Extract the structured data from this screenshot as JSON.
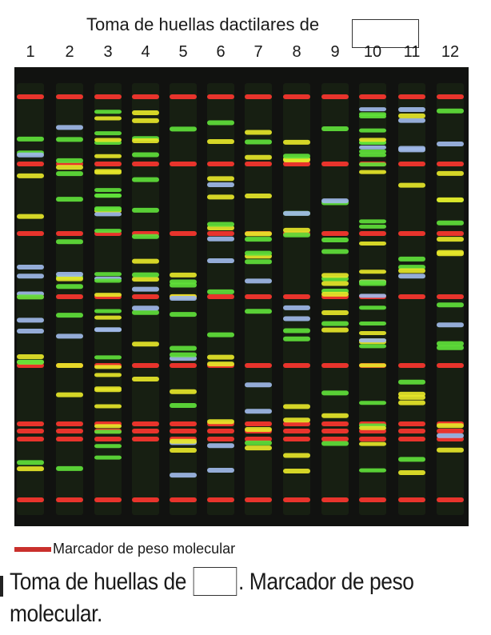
{
  "header": {
    "title": "Toma de huellas dactilares de"
  },
  "lanes": [
    "1",
    "2",
    "3",
    "4",
    "5",
    "6",
    "7",
    "8",
    "9",
    "10",
    "11",
    "12"
  ],
  "colors": {
    "marker": "#e8342c",
    "yellow": "#e6e629",
    "green": "#5fe03a",
    "blue": "#9fb8e8",
    "background": "#111210"
  },
  "legend": {
    "label": "Marcador de peso molecular"
  },
  "caption": {
    "part1": "Toma de huellas de",
    "part2": ". Marcador de peso molecular."
  }
}
